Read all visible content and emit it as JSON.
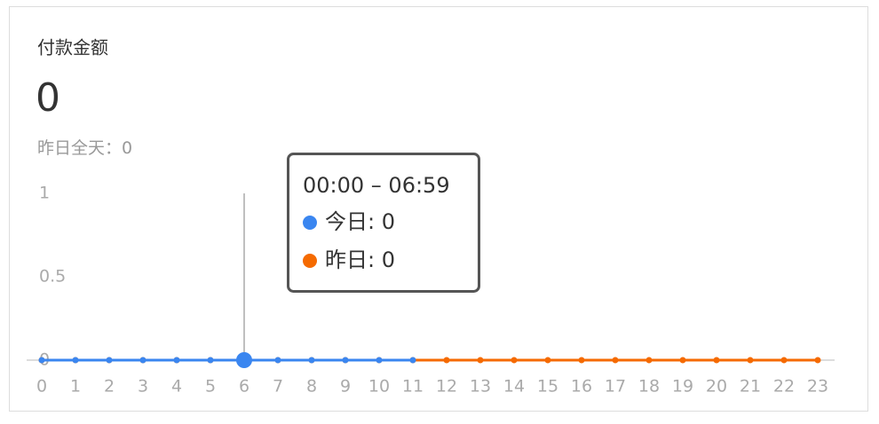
{
  "chart_data": {
    "type": "line",
    "title": "付款金额",
    "value": 0,
    "yesterday_label": "昨日全天：",
    "yesterday_value": 0,
    "categories": [
      "0",
      "1",
      "2",
      "3",
      "4",
      "5",
      "6",
      "7",
      "8",
      "9",
      "10",
      "11",
      "12",
      "13",
      "14",
      "15",
      "16",
      "17",
      "18",
      "19",
      "20",
      "21",
      "22",
      "23"
    ],
    "series": [
      {
        "name": "昨日",
        "color": "#f56a00",
        "values": [
          0,
          0,
          0,
          0,
          0,
          0,
          0,
          0,
          0,
          0,
          0,
          0,
          0,
          0,
          0,
          0,
          0,
          0,
          0,
          0,
          0,
          0,
          0,
          0
        ]
      },
      {
        "name": "今日",
        "color": "#3a86f0",
        "values": [
          0,
          0,
          0,
          0,
          0,
          0,
          0,
          0,
          0,
          0,
          0,
          0,
          null,
          null,
          null,
          null,
          null,
          null,
          null,
          null,
          null,
          null,
          null,
          null
        ]
      }
    ],
    "ylim": [
      0,
      1
    ],
    "yticks": [
      0,
      0.5,
      1
    ],
    "tooltip": {
      "title": "00:00 – 06:59",
      "index": 6
    }
  }
}
